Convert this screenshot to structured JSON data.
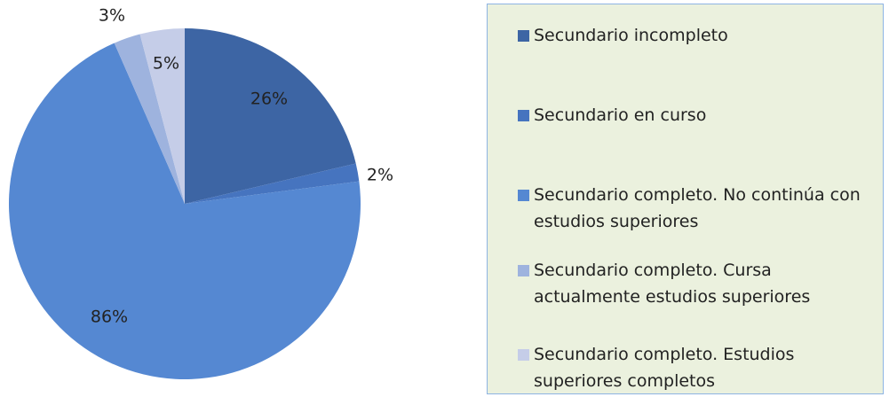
{
  "chart_data": {
    "type": "pie",
    "categories": [
      "Secundario incompleto",
      "Secundario en curso",
      "Secundario completo. No continúa con estudios superiores",
      "Secundario completo. Cursa actualmente estudios superiores",
      "Secundario completo. Estudios superiores completos"
    ],
    "values": [
      26,
      2,
      86,
      3,
      5
    ],
    "value_labels": [
      "26%",
      "2%",
      "86%",
      "3%",
      "5%"
    ],
    "colors": [
      "#3d65a4",
      "#4674bf",
      "#5588d2",
      "#9eb3de",
      "#c5cde8"
    ],
    "legend": "right"
  }
}
